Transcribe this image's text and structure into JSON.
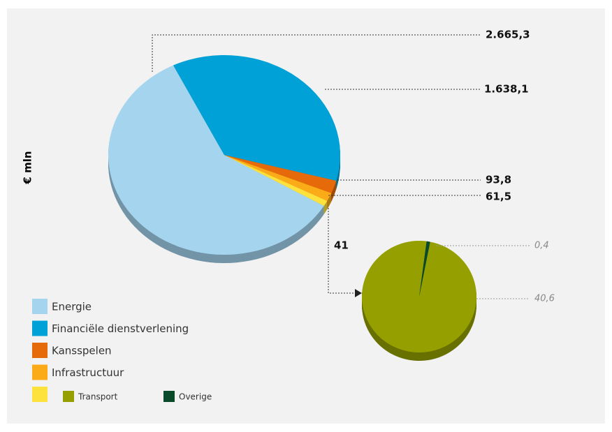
{
  "chart_data": [
    {
      "type": "pie",
      "axis_label": "€ mln",
      "categories": [
        "Energie",
        "Financiële dienstverlening",
        "Kansspelen",
        "Infrastructuur",
        null
      ],
      "values": [
        2665.3,
        1638.1,
        93.8,
        61.5,
        41
      ],
      "value_labels": [
        "2.665,3",
        "1.638,1",
        "93,8",
        "61,5",
        "41"
      ],
      "colors": [
        "#a4d4ee",
        "#00a1d6",
        "#e66a0a",
        "#fbab18",
        "#fde23e"
      ]
    },
    {
      "type": "pie",
      "categories": [
        "Transport",
        "Overige"
      ],
      "values": [
        40.6,
        0.4
      ],
      "value_labels": [
        "40,6",
        "0,4"
      ],
      "colors": [
        "#95a000",
        "#0a4a2a"
      ]
    }
  ]
}
